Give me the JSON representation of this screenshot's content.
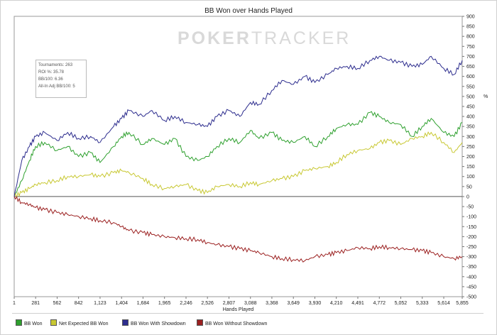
{
  "chart_data": {
    "type": "line",
    "title": "BB Won over Hands Played",
    "xlabel": "Hands Played",
    "ylabel": "",
    "y_unit": "%",
    "watermark": {
      "bold": "POKER",
      "thin": "TRACKER"
    },
    "xlim": [
      1,
      5855
    ],
    "ylim": [
      -500,
      900
    ],
    "y_ticks": [
      -500,
      -450,
      -400,
      -350,
      -300,
      -250,
      -200,
      -150,
      -100,
      -50,
      0,
      50,
      100,
      150,
      200,
      250,
      300,
      350,
      400,
      450,
      500,
      550,
      600,
      650,
      700,
      750,
      800,
      850,
      900
    ],
    "x_tick_labels": [
      "1",
      "281",
      "562",
      "842",
      "1,123",
      "1,404",
      "1,684",
      "1,965",
      "2,246",
      "2,526",
      "2,807",
      "3,088",
      "3,368",
      "3,649",
      "3,930",
      "4,210",
      "4,491",
      "4,772",
      "5,052",
      "5,333",
      "5,614",
      "5,855"
    ],
    "x_tick_values": [
      1,
      281,
      562,
      842,
      1123,
      1404,
      1684,
      1965,
      2246,
      2526,
      2807,
      3088,
      3368,
      3649,
      3930,
      4210,
      4491,
      4772,
      5052,
      5333,
      5614,
      5855
    ],
    "grid": false,
    "legend_position": "bottom",
    "stats": [
      "Tournaments: 263",
      "ROI %: 35.78",
      "BB/100: 6.36",
      "All-In Adj BB/100: 5"
    ],
    "series": [
      {
        "name": "BB Won",
        "color": "#2ea02e",
        "x": [
          1,
          100,
          200,
          280,
          400,
          560,
          700,
          842,
          1000,
          1123,
          1300,
          1404,
          1500,
          1684,
          1800,
          1965,
          2100,
          2246,
          2400,
          2526,
          2650,
          2807,
          2950,
          3088,
          3200,
          3368,
          3500,
          3649,
          3800,
          3930,
          4100,
          4210,
          4350,
          4491,
          4650,
          4772,
          4900,
          5052,
          5200,
          5333,
          5450,
          5614,
          5750,
          5855
        ],
        "y": [
          0,
          80,
          180,
          250,
          270,
          230,
          250,
          200,
          220,
          170,
          250,
          300,
          320,
          260,
          290,
          260,
          290,
          200,
          180,
          200,
          250,
          290,
          270,
          330,
          290,
          320,
          280,
          270,
          300,
          250,
          300,
          340,
          360,
          360,
          420,
          400,
          370,
          360,
          300,
          350,
          390,
          320,
          300,
          370
        ]
      },
      {
        "name": "Net Expected BB Won",
        "color": "#c8c832",
        "x": [
          1,
          100,
          200,
          280,
          400,
          560,
          700,
          842,
          1000,
          1123,
          1300,
          1404,
          1500,
          1684,
          1800,
          1965,
          2100,
          2246,
          2400,
          2526,
          2650,
          2807,
          2950,
          3088,
          3200,
          3368,
          3500,
          3649,
          3800,
          3930,
          4100,
          4210,
          4350,
          4491,
          4650,
          4772,
          4900,
          5052,
          5200,
          5333,
          5450,
          5614,
          5750,
          5855
        ],
        "y": [
          0,
          20,
          40,
          60,
          70,
          80,
          100,
          100,
          110,
          100,
          120,
          130,
          120,
          90,
          60,
          40,
          50,
          60,
          30,
          20,
          50,
          60,
          50,
          70,
          60,
          80,
          90,
          100,
          130,
          140,
          150,
          170,
          210,
          230,
          240,
          270,
          280,
          260,
          290,
          300,
          320,
          270,
          220,
          270
        ]
      },
      {
        "name": "BB Won With Showdown",
        "color": "#2d2d8e",
        "x": [
          1,
          100,
          200,
          280,
          400,
          560,
          700,
          842,
          1000,
          1123,
          1300,
          1404,
          1500,
          1684,
          1800,
          1965,
          2100,
          2246,
          2400,
          2526,
          2650,
          2807,
          2950,
          3088,
          3200,
          3368,
          3500,
          3649,
          3800,
          3930,
          4100,
          4210,
          4350,
          4491,
          4650,
          4772,
          4900,
          5052,
          5200,
          5333,
          5450,
          5614,
          5750,
          5855
        ],
        "y": [
          0,
          180,
          250,
          300,
          320,
          280,
          320,
          290,
          300,
          270,
          350,
          390,
          430,
          400,
          430,
          380,
          400,
          370,
          360,
          350,
          400,
          430,
          400,
          470,
          460,
          530,
          580,
          560,
          600,
          570,
          610,
          640,
          650,
          640,
          680,
          700,
          680,
          670,
          650,
          660,
          700,
          640,
          610,
          680
        ]
      },
      {
        "name": "BB Won Without Showdown",
        "color": "#9b2020",
        "x": [
          1,
          100,
          200,
          280,
          400,
          560,
          700,
          842,
          1000,
          1123,
          1300,
          1404,
          1500,
          1684,
          1800,
          1965,
          2100,
          2246,
          2400,
          2526,
          2650,
          2807,
          2950,
          3088,
          3200,
          3368,
          3500,
          3649,
          3800,
          3930,
          4100,
          4210,
          4350,
          4491,
          4650,
          4772,
          4900,
          5052,
          5200,
          5333,
          5450,
          5614,
          5750,
          5855
        ],
        "y": [
          0,
          -30,
          -40,
          -55,
          -65,
          -80,
          -90,
          -100,
          -110,
          -120,
          -130,
          -150,
          -170,
          -180,
          -190,
          -200,
          -205,
          -210,
          -215,
          -230,
          -240,
          -250,
          -260,
          -270,
          -280,
          -300,
          -310,
          -315,
          -320,
          -300,
          -290,
          -280,
          -270,
          -255,
          -260,
          -250,
          -255,
          -260,
          -265,
          -270,
          -280,
          -300,
          -310,
          -300
        ]
      }
    ]
  }
}
